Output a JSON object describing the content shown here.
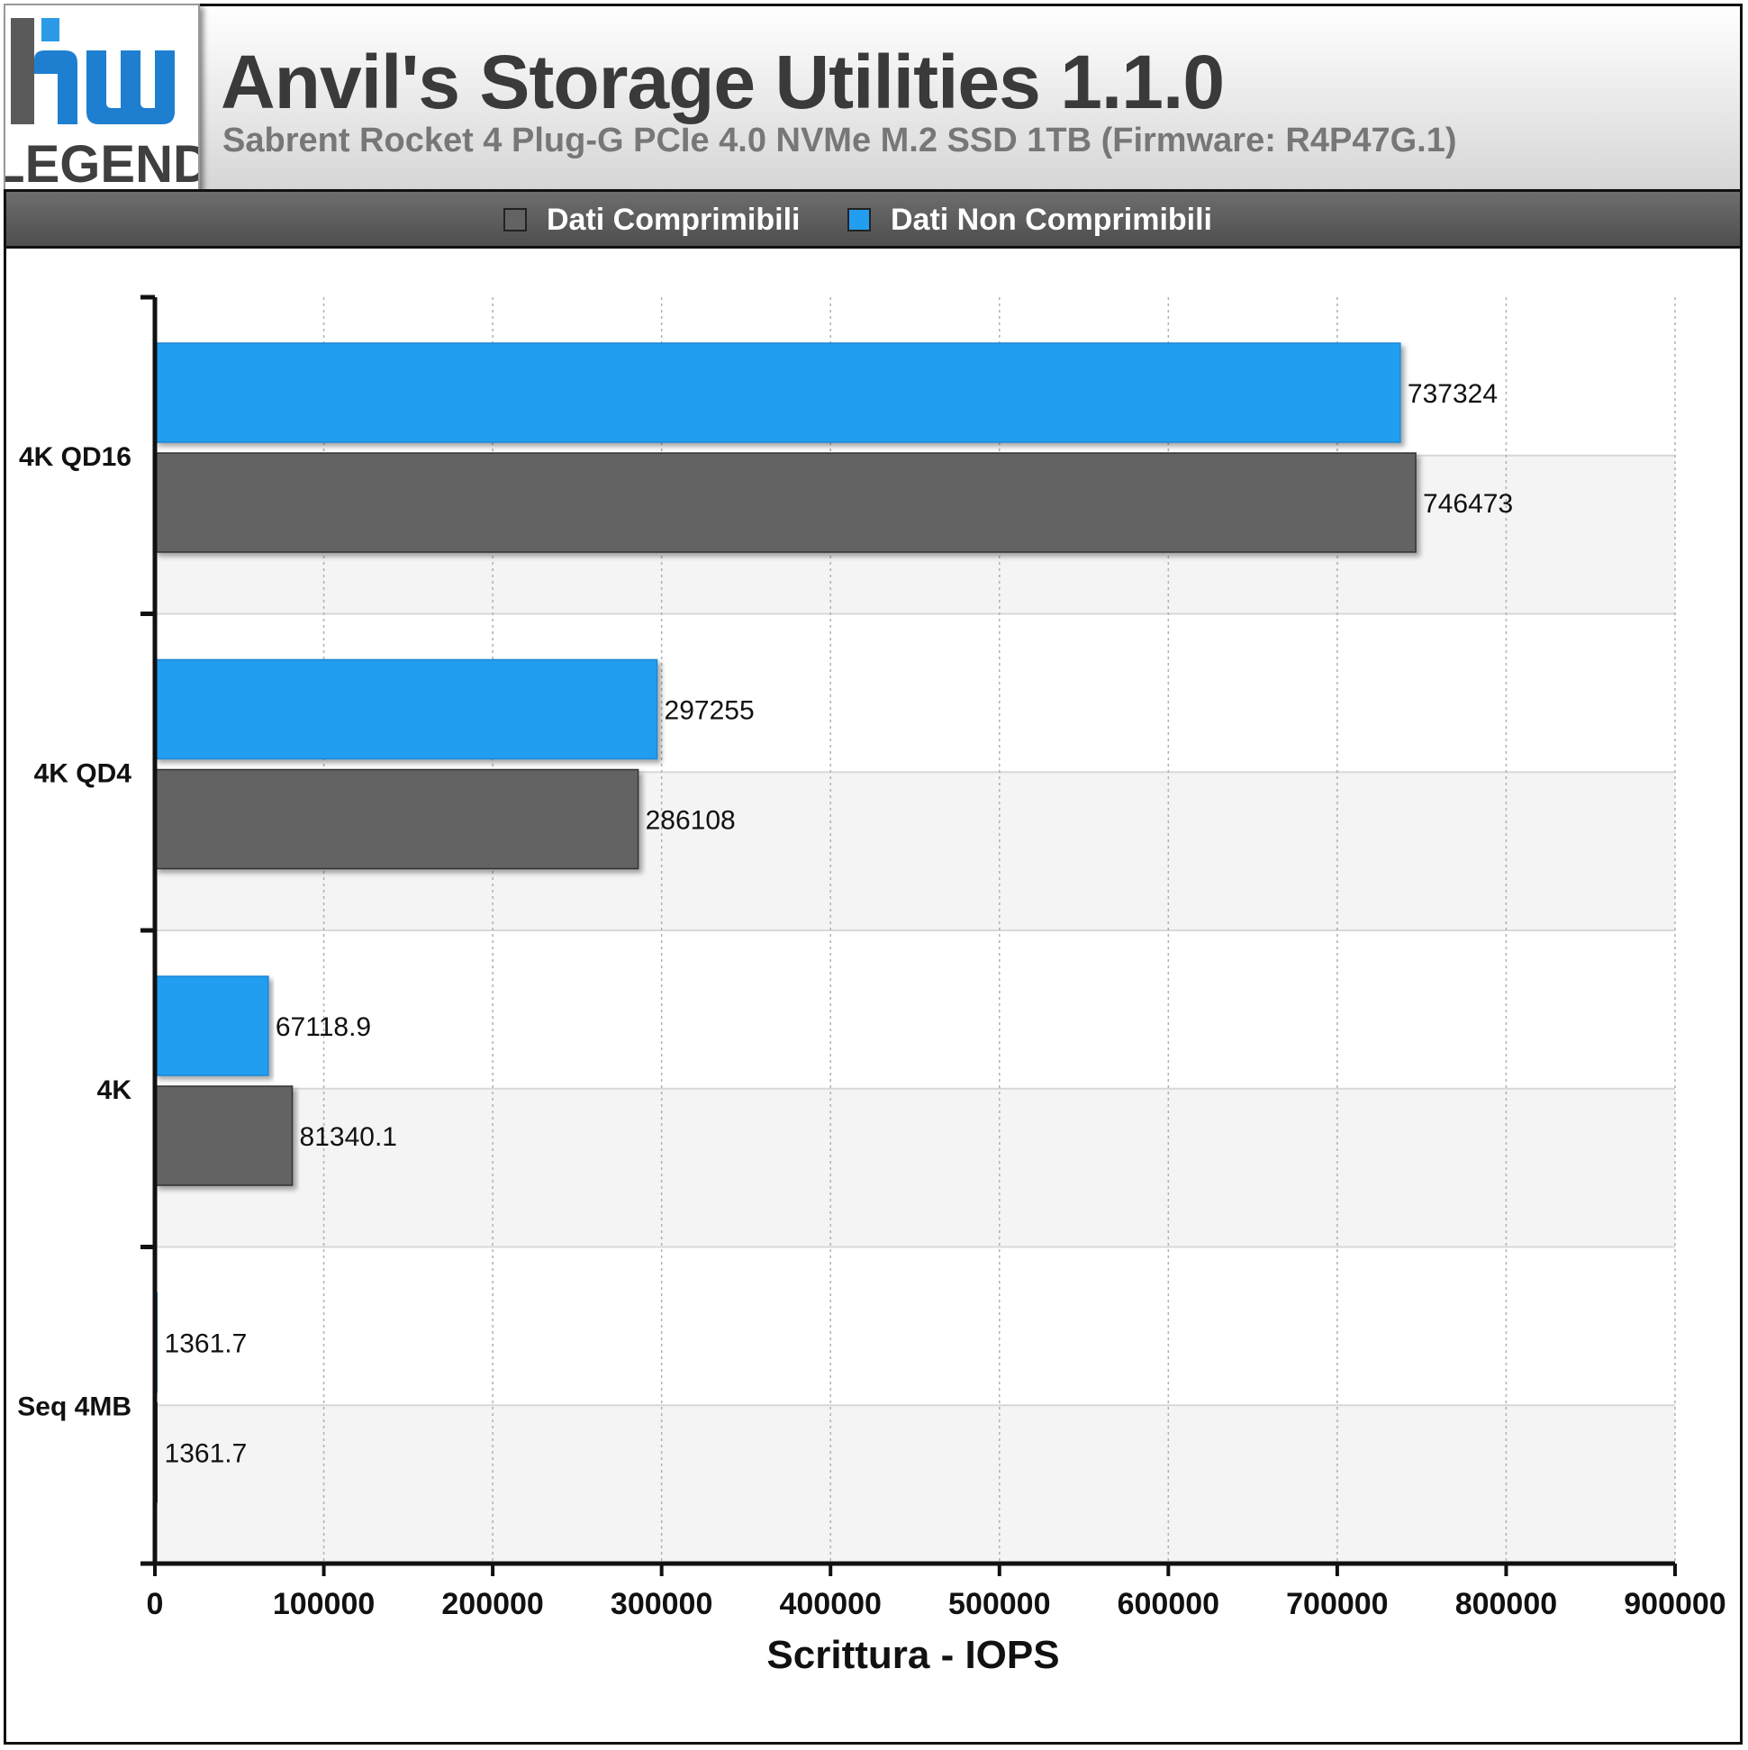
{
  "header": {
    "title": "Anvil's Storage Utilities 1.1.0",
    "subtitle": "Sabrent Rocket 4 Plug-G PCIe 4.0 NVMe M.2 SSD 1TB (Firmware: R4P47G.1)"
  },
  "logo": {
    "top_text": "hw",
    "bottom_text": "LEGEND",
    "icon": "hw-legend-logo"
  },
  "colors": {
    "compressible": "#636363",
    "incompressible": "#229ef0"
  },
  "chart_data": {
    "type": "bar",
    "orientation": "horizontal",
    "categories": [
      "4K QD16",
      "4K QD4",
      "4K",
      "Seq 4MB"
    ],
    "series": [
      {
        "name": "Dati Non Comprimibili",
        "color": "#229ef0",
        "values": [
          737324,
          297255,
          67118.9,
          1361.7
        ],
        "labels": [
          "737324",
          "297255",
          "67118.9",
          "1361.7"
        ]
      },
      {
        "name": "Dati Comprimibili",
        "color": "#636363",
        "values": [
          746473,
          286108,
          81340.1,
          1361.7
        ],
        "labels": [
          "746473",
          "286108",
          "81340.1",
          "1361.7"
        ]
      }
    ],
    "legend": [
      "Dati Comprimibili",
      "Dati Non Comprimibili"
    ],
    "legend_position": "top",
    "xlabel": "Scrittura - IOPS",
    "ylabel": "",
    "xlim": [
      0,
      900000
    ],
    "xticks": [
      0,
      100000,
      200000,
      300000,
      400000,
      500000,
      600000,
      700000,
      800000,
      900000
    ],
    "xtick_labels": [
      "0",
      "100000",
      "200000",
      "300000",
      "400000",
      "500000",
      "600000",
      "700000",
      "800000",
      "900000"
    ],
    "grid": true
  }
}
